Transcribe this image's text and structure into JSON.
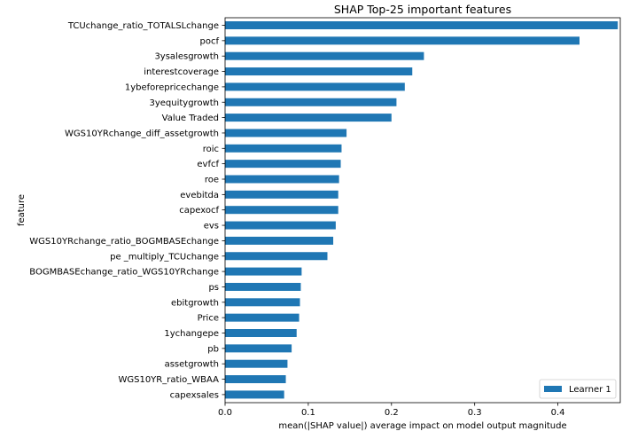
{
  "chart_data": {
    "type": "bar",
    "orientation": "horizontal",
    "title": "SHAP Top-25 important features",
    "xlabel": "mean(|SHAP value|) average impact on model output magnitude",
    "ylabel": "feature",
    "xlim": [
      0,
      0.475
    ],
    "xticks": [
      0.0,
      0.1,
      0.2,
      0.3,
      0.4
    ],
    "xtick_labels": [
      "0.0",
      "0.1",
      "0.2",
      "0.3",
      "0.4"
    ],
    "grid": false,
    "legend": {
      "position": "bottom-right",
      "entries": [
        "Learner 1"
      ]
    },
    "series": [
      {
        "name": "Learner 1",
        "color": "#1f77b4",
        "values": [
          0.472,
          0.426,
          0.239,
          0.225,
          0.216,
          0.206,
          0.2,
          0.146,
          0.14,
          0.139,
          0.137,
          0.136,
          0.136,
          0.133,
          0.13,
          0.123,
          0.092,
          0.091,
          0.09,
          0.089,
          0.086,
          0.08,
          0.075,
          0.073,
          0.071
        ]
      }
    ],
    "categories": [
      "TCUchange_ratio_TOTALSLchange",
      "pocf",
      "3ysalesgrowth",
      "interestcoverage",
      "1ybeforepricechange",
      "3yequitygrowth",
      "Value Traded",
      "WGS10YRchange_diff_assetgrowth",
      "roic",
      "evfcf",
      "roe",
      "evebitda",
      "capexocf",
      "evs",
      "WGS10YRchange_ratio_BOGMBASEchange",
      "pe _multiply_TCUchange",
      "BOGMBASEchange_ratio_WGS10YRchange",
      "ps",
      "ebitgrowth",
      "Price",
      "1ychangepe",
      "pb",
      "assetgrowth",
      "WGS10YR_ratio_WBAA",
      "capexsales"
    ]
  }
}
